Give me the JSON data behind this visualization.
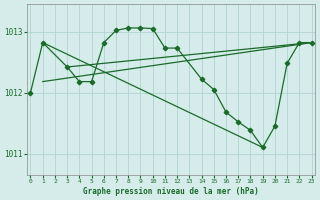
{
  "title": "Graphe pression niveau de la mer (hPa)",
  "bg_color": "#d5ecea",
  "grid_color": "#b0d5d0",
  "line_color": "#1a6b2a",
  "text_color": "#1a6b2a",
  "spine_color": "#888888",
  "series1_x": [
    0,
    1,
    3,
    4,
    5,
    6,
    7,
    8,
    9,
    10,
    11,
    12,
    14,
    15,
    16,
    17,
    18,
    19,
    20,
    21,
    22,
    23
  ],
  "series1_y": [
    1012.0,
    1012.82,
    1012.42,
    1012.18,
    1012.18,
    1012.82,
    1013.02,
    1013.06,
    1013.06,
    1013.05,
    1012.73,
    1012.73,
    1012.22,
    1012.05,
    1011.68,
    1011.52,
    1011.38,
    1011.1,
    1011.45,
    1012.48,
    1012.82,
    1012.82
  ],
  "diag_line1_x": [
    1,
    19
  ],
  "diag_line1_y": [
    1012.82,
    1011.1
  ],
  "diag_line2_x": [
    1,
    23
  ],
  "diag_line2_y": [
    1012.18,
    1012.82
  ],
  "diag_line3_x": [
    3,
    23
  ],
  "diag_line3_y": [
    1012.42,
    1012.82
  ],
  "ylim": [
    1010.65,
    1013.45
  ],
  "yticks": [
    1011,
    1012,
    1013
  ],
  "xlim": [
    -0.3,
    23.3
  ],
  "xticks": [
    0,
    1,
    2,
    3,
    4,
    5,
    6,
    7,
    8,
    9,
    10,
    11,
    12,
    13,
    14,
    15,
    16,
    17,
    18,
    19,
    20,
    21,
    22,
    23
  ]
}
